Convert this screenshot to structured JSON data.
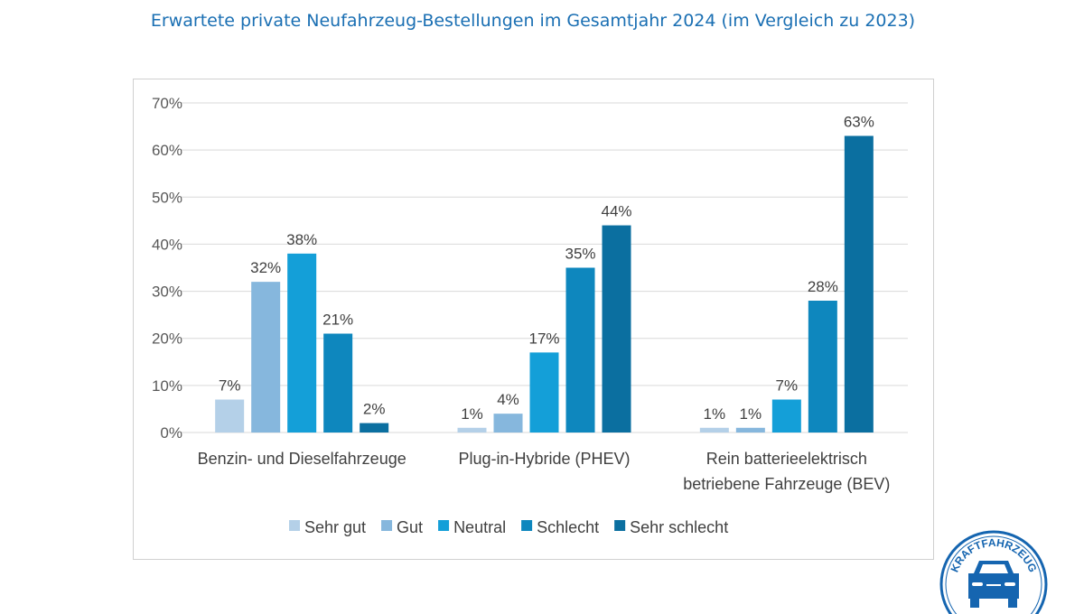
{
  "chart_data": {
    "type": "bar",
    "title": "Erwartete private Neufahrzeug-Bestellungen im Gesamtjahr 2024 (im Vergleich zu 2023)",
    "categories": [
      [
        "Benzin- und Dieselfahrzeuge"
      ],
      [
        "Plug-in-Hybride (PHEV)"
      ],
      [
        "Rein batterieelektrisch",
        "betriebene Fahrzeuge (BEV)"
      ]
    ],
    "series": [
      {
        "name": "Sehr gut",
        "color": "#b4d0e8",
        "values": [
          7,
          1,
          1
        ]
      },
      {
        "name": "Gut",
        "color": "#86b7dd",
        "values": [
          32,
          4,
          1
        ]
      },
      {
        "name": "Neutral",
        "color": "#149fd8",
        "values": [
          38,
          17,
          7
        ]
      },
      {
        "name": "Schlecht",
        "color": "#0e87be",
        "values": [
          21,
          35,
          28
        ]
      },
      {
        "name": "Sehr schlecht",
        "color": "#0b6fa0",
        "values": [
          2,
          44,
          63
        ]
      }
    ],
    "ylim": [
      0,
      70
    ],
    "yticks": [
      "0%",
      "10%",
      "20%",
      "30%",
      "40%",
      "50%",
      "60%",
      "70%"
    ],
    "grid": true,
    "legend": "bottom",
    "value_suffix": "%"
  },
  "logo": {
    "text": "KRAFTFAHRZEUG",
    "color": "#1565b0"
  }
}
